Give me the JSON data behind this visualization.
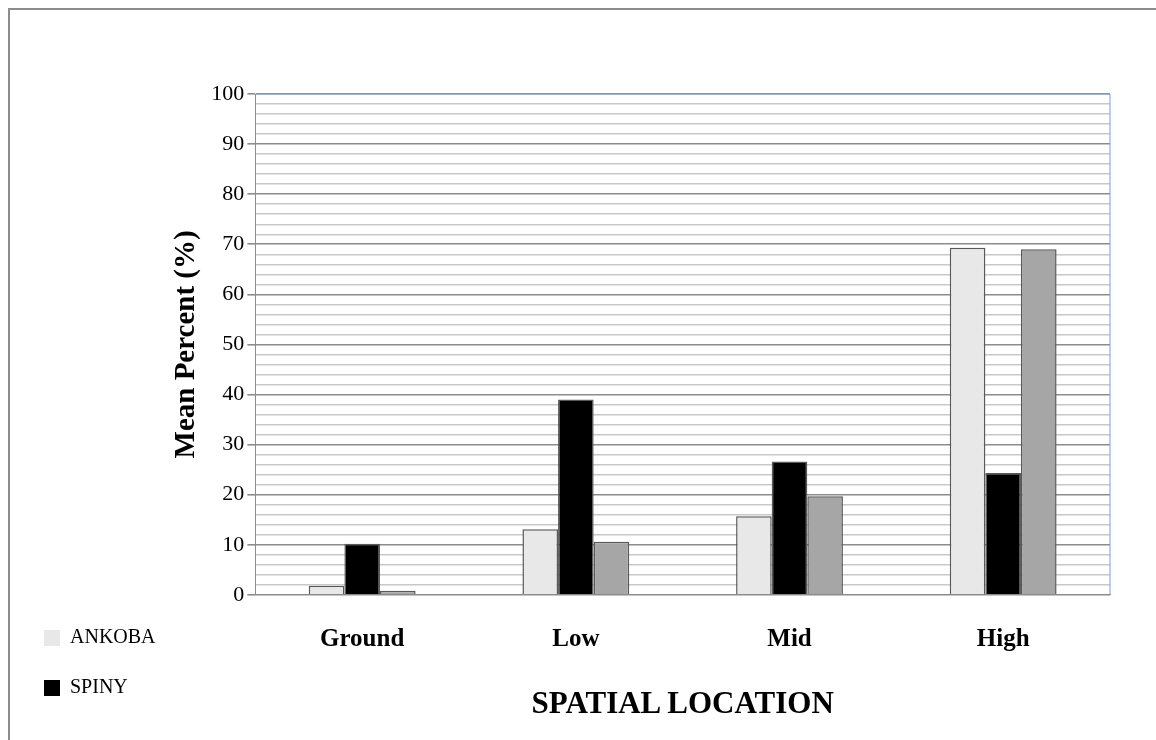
{
  "chart_data": {
    "type": "bar",
    "xlabel": "SPATIAL LOCATION",
    "ylabel": "Mean Percent (%)",
    "categories": [
      "Ground",
      "Low",
      "Mid",
      "High"
    ],
    "series": [
      {
        "name": "ANKOBA",
        "color": "#e8e8e8",
        "values": [
          1.8,
          13.1,
          15.7,
          69.3
        ]
      },
      {
        "name": "SPINY",
        "color": "#000000",
        "values": [
          10.2,
          39,
          26.6,
          24.3
        ]
      },
      {
        "color": "#a6a6a6",
        "values": [
          0.8,
          10.6,
          19.7,
          69
        ]
      }
    ],
    "ylim": [
      0,
      100
    ],
    "yticks": [
      0,
      10,
      20,
      30,
      40,
      50,
      60,
      70,
      80,
      90,
      100
    ],
    "grid": true,
    "legend": "bottom left"
  }
}
